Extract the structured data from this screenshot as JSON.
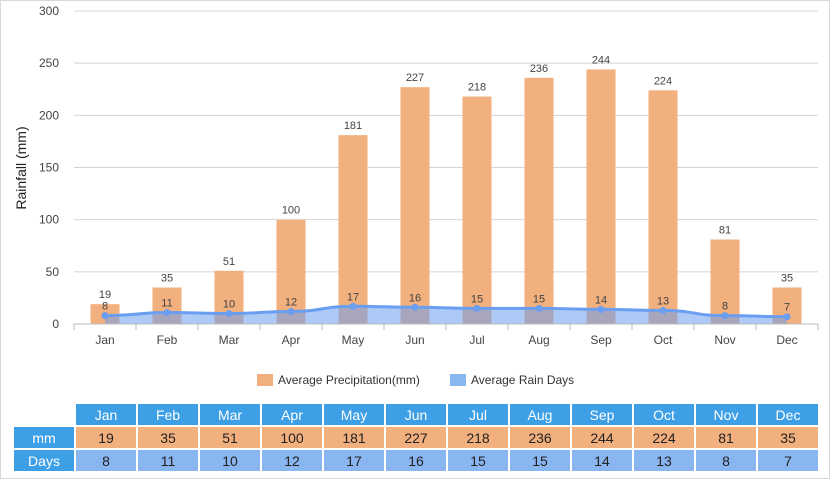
{
  "chart_data": {
    "type": "bar",
    "ylabel": "Rainfall (mm)",
    "ylim": [
      0,
      300
    ],
    "yticks": [
      0,
      50,
      100,
      150,
      200,
      250,
      300
    ],
    "grid": true,
    "legend_position": "bottom",
    "categories": [
      "Jan",
      "Feb",
      "Mar",
      "Apr",
      "May",
      "Jun",
      "Jul",
      "Aug",
      "Sep",
      "Oct",
      "Nov",
      "Dec"
    ],
    "series": [
      {
        "name": "Average Precipitation(mm)",
        "type": "bar",
        "color": "#f2b07e",
        "values": [
          19,
          35,
          51,
          100,
          181,
          227,
          218,
          236,
          244,
          224,
          81,
          35
        ]
      },
      {
        "name": "Average Rain Days",
        "type": "area",
        "color": "#6a9ef0",
        "values": [
          8,
          11,
          10,
          12,
          17,
          16,
          15,
          15,
          14,
          13,
          8,
          7
        ]
      }
    ]
  },
  "table": {
    "row_mm_label": "mm",
    "row_days_label": "Days"
  }
}
